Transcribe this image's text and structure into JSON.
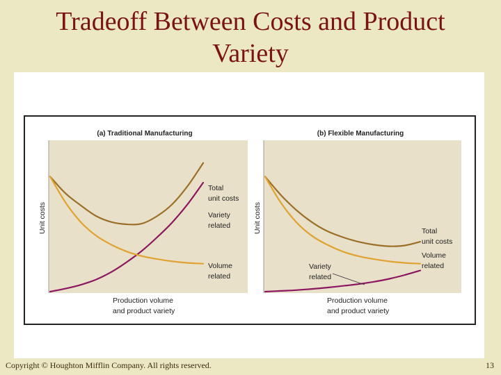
{
  "slide": {
    "title_line1": "Tradeoff Between Costs and Product",
    "title_line2": "Variety",
    "copyright": "Copyright © Houghton Mifflin Company. All rights reserved.",
    "page_number": "13"
  },
  "colors": {
    "total": "#9c6f28",
    "volume": "#e0a230",
    "variety": "#8c1660",
    "plot_bg": "#e8e0c8"
  },
  "chart_data": [
    {
      "type": "line",
      "title": "(a) Traditional Manufacturing",
      "ylabel": "Unit costs",
      "xlabel_lines": [
        "Production volume",
        "and product variety"
      ],
      "xlim": [
        0,
        10
      ],
      "ylim": [
        0,
        10
      ],
      "series": [
        {
          "key": "total",
          "label_lines": [
            "Total",
            "unit costs"
          ],
          "x": [
            0,
            1,
            2,
            3,
            4,
            5,
            6,
            7,
            8,
            9,
            10
          ],
          "y": [
            7.6,
            6.5,
            5.7,
            5.0,
            4.6,
            4.45,
            4.5,
            5.0,
            5.8,
            7.0,
            8.5
          ]
        },
        {
          "key": "variety",
          "label_lines": [
            "Variety",
            "related"
          ],
          "x": [
            0,
            1,
            2,
            3,
            4,
            5,
            6,
            7,
            8,
            9,
            10
          ],
          "y": [
            0.0,
            0.2,
            0.45,
            0.8,
            1.3,
            1.95,
            2.7,
            3.6,
            4.6,
            5.8,
            7.2
          ]
        },
        {
          "key": "volume",
          "label_lines": [
            "Volume",
            "related"
          ],
          "x": [
            0,
            1,
            2,
            3,
            4,
            5,
            6,
            7,
            8,
            9,
            10
          ],
          "y": [
            7.6,
            5.9,
            4.6,
            3.7,
            3.1,
            2.65,
            2.35,
            2.15,
            2.0,
            1.9,
            1.85
          ]
        }
      ]
    },
    {
      "type": "line",
      "title": "(b) Flexible Manufacturing",
      "ylabel": "Unit costs",
      "xlabel_lines": [
        "Production volume",
        "and product variety"
      ],
      "xlim": [
        0,
        10
      ],
      "ylim": [
        0,
        10
      ],
      "series": [
        {
          "key": "total",
          "label_lines": [
            "Total",
            "unit costs"
          ],
          "x": [
            0,
            1,
            2,
            3,
            4,
            5,
            6,
            7,
            8,
            9,
            10
          ],
          "y": [
            7.6,
            6.4,
            5.4,
            4.6,
            4.0,
            3.6,
            3.3,
            3.1,
            3.0,
            3.05,
            3.3
          ]
        },
        {
          "key": "volume",
          "label_lines": [
            "Volume",
            "related"
          ],
          "x": [
            0,
            1,
            2,
            3,
            4,
            5,
            6,
            7,
            8,
            9,
            10
          ],
          "y": [
            7.6,
            5.9,
            4.6,
            3.7,
            3.1,
            2.65,
            2.35,
            2.15,
            2.0,
            1.9,
            1.85
          ]
        },
        {
          "key": "variety",
          "label_lines": [
            "Variety",
            "related"
          ],
          "x": [
            0,
            1,
            2,
            3,
            4,
            5,
            6,
            7,
            8,
            9,
            10
          ],
          "y": [
            0.0,
            0.05,
            0.1,
            0.18,
            0.27,
            0.38,
            0.5,
            0.65,
            0.85,
            1.1,
            1.4
          ]
        }
      ]
    }
  ]
}
